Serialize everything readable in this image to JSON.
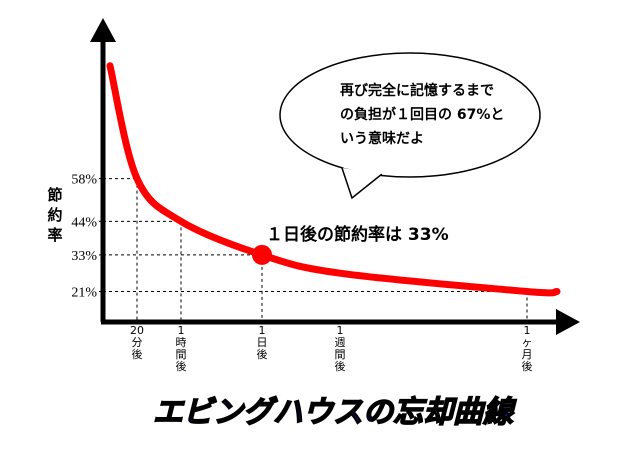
{
  "chart_data": {
    "type": "line",
    "title": "エビングハウスの忘却曲線",
    "y_label": "節約率",
    "annotation": "１日後の節約率は 33%",
    "callout": [
      "再び完全に記憶するまで",
      "の負担が１回目の 67%と",
      "いう意味だよ"
    ],
    "categories": [
      null,
      "20分後",
      "1時間後",
      "1日後",
      "1週間後",
      "1ヶ月後",
      null
    ],
    "series": [
      {
        "name": "節約率",
        "color": "#ff0000",
        "values": [
          95,
          58,
          44,
          33,
          27,
          21,
          21
        ]
      }
    ],
    "highlight": 3,
    "ylim": [
      11,
      110
    ],
    "yticks": [
      {
        "value": 58,
        "label": "58%"
      },
      {
        "value": 44,
        "label": "44%"
      },
      {
        "value": 33,
        "label": "33%"
      },
      {
        "value": 21,
        "label": "21%"
      }
    ]
  }
}
